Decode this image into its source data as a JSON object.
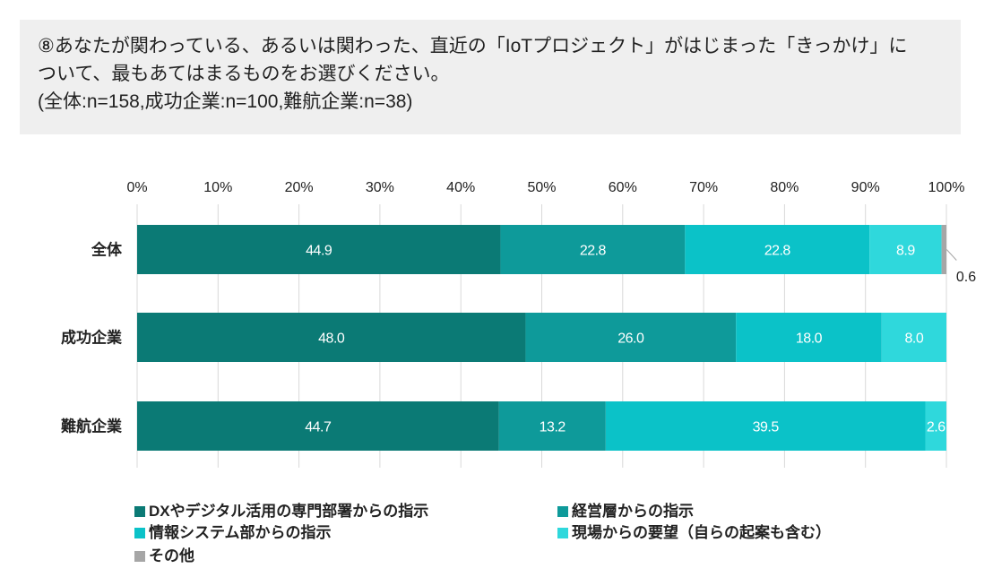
{
  "title": {
    "line1": "⑧あなたが関わっている、あるいは関わった、直近の「IoTプロジェクト」がはじまった「きっかけ」に",
    "line2": "ついて、最もあてはまるものをお選びください。",
    "line3": "(全体:n=158,成功企業:n=100,難航企業:n=38)"
  },
  "chart_data": {
    "type": "bar",
    "orientation": "horizontal",
    "stacked": true,
    "categories": [
      "全体",
      "成功企業",
      "難航企業"
    ],
    "series": [
      {
        "name": "DXやデジタル活用の専門部署からの指示",
        "color": "#0b7a75",
        "values": [
          44.9,
          48.0,
          44.7
        ],
        "labels": [
          "44.9",
          "48.0",
          "44.7"
        ]
      },
      {
        "name": "経営層からの指示",
        "color": "#0e9a9a",
        "values": [
          22.8,
          26.0,
          13.2
        ],
        "labels": [
          "22.8",
          "26.0",
          "13.2"
        ]
      },
      {
        "name": "情報システム部からの指示",
        "color": "#0bc2c8",
        "values": [
          22.8,
          18.0,
          39.5
        ],
        "labels": [
          "22.8",
          "18.0",
          "39.5"
        ]
      },
      {
        "name": "現場からの要望（自らの起案も含む）",
        "color": "#2fd8dc",
        "values": [
          8.9,
          8.0,
          2.6
        ],
        "labels": [
          "8.9",
          "8.0",
          "2.6"
        ]
      },
      {
        "name": "その他",
        "color": "#a6a6a6",
        "values": [
          0.6,
          0,
          0
        ],
        "labels": [
          "0.6",
          "",
          ""
        ]
      }
    ],
    "xaxis": {
      "ticks": [
        "0%",
        "10%",
        "20%",
        "30%",
        "40%",
        "50%",
        "60%",
        "70%",
        "80%",
        "90%",
        "100%"
      ],
      "range": [
        0,
        100
      ]
    },
    "grid": true,
    "legend_position": "bottom"
  }
}
